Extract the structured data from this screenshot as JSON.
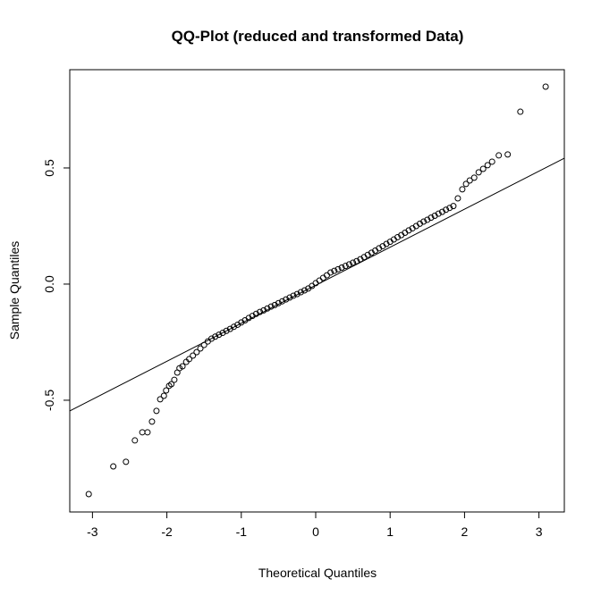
{
  "chart_data": {
    "type": "scatter",
    "title": "QQ-Plot (reduced and transformed Data)",
    "xlabel": "Theoretical Quantiles",
    "ylabel": "Sample Quantiles",
    "xlim": [
      -3.305,
      3.341
    ],
    "ylim": [
      -0.981,
      0.923
    ],
    "xticks": [
      -3,
      -2,
      -1,
      0,
      1,
      2,
      3
    ],
    "yticks": [
      -0.5,
      {
        "value": 0,
        "label": "0.0"
      },
      0.5
    ],
    "color": "#000000",
    "x": [
      -3.05,
      -2.72,
      -2.55,
      -2.43,
      -2.33,
      -2.26,
      -2.2,
      -2.14,
      -2.09,
      -2.04,
      -2.01,
      -1.97,
      -1.94,
      -1.9,
      -1.86,
      -1.83,
      -1.79,
      -1.74,
      -1.7,
      -1.65,
      -1.6,
      -1.55,
      -1.5,
      -1.45,
      -1.4,
      -1.35,
      -1.3,
      -1.25,
      -1.2,
      -1.15,
      -1.1,
      -1.05,
      -1.0,
      -0.95,
      -0.9,
      -0.85,
      -0.8,
      -0.75,
      -0.7,
      -0.65,
      -0.6,
      -0.55,
      -0.5,
      -0.45,
      -0.4,
      -0.35,
      -0.3,
      -0.25,
      -0.2,
      -0.15,
      -0.1,
      -0.05,
      0.0,
      0.05,
      0.1,
      0.15,
      0.2,
      0.25,
      0.3,
      0.35,
      0.4,
      0.45,
      0.5,
      0.55,
      0.6,
      0.65,
      0.7,
      0.75,
      0.8,
      0.85,
      0.9,
      0.95,
      1.0,
      1.05,
      1.1,
      1.15,
      1.2,
      1.25,
      1.3,
      1.35,
      1.4,
      1.45,
      1.5,
      1.55,
      1.6,
      1.65,
      1.7,
      1.75,
      1.8,
      1.85,
      1.91,
      1.97,
      2.02,
      2.07,
      2.13,
      2.19,
      2.25,
      2.31,
      2.37,
      2.46,
      2.58,
      2.75,
      3.09
    ],
    "y": [
      -0.904,
      -0.785,
      -0.765,
      -0.673,
      -0.638,
      -0.638,
      -0.592,
      -0.546,
      -0.496,
      -0.481,
      -0.458,
      -0.438,
      -0.431,
      -0.412,
      -0.381,
      -0.362,
      -0.354,
      -0.335,
      -0.323,
      -0.308,
      -0.293,
      -0.277,
      -0.262,
      -0.247,
      -0.235,
      -0.226,
      -0.218,
      -0.21,
      -0.201,
      -0.193,
      -0.184,
      -0.175,
      -0.165,
      -0.156,
      -0.146,
      -0.137,
      -0.128,
      -0.12,
      -0.113,
      -0.105,
      -0.097,
      -0.09,
      -0.082,
      -0.074,
      -0.066,
      -0.058,
      -0.05,
      -0.043,
      -0.035,
      -0.027,
      -0.019,
      -0.008,
      0.004,
      0.015,
      0.027,
      0.038,
      0.05,
      0.057,
      0.064,
      0.071,
      0.078,
      0.085,
      0.092,
      0.099,
      0.107,
      0.116,
      0.126,
      0.135,
      0.144,
      0.154,
      0.163,
      0.173,
      0.182,
      0.192,
      0.202,
      0.211,
      0.221,
      0.231,
      0.24,
      0.25,
      0.26,
      0.269,
      0.277,
      0.286,
      0.294,
      0.303,
      0.311,
      0.32,
      0.328,
      0.336,
      0.369,
      0.408,
      0.431,
      0.446,
      0.458,
      0.481,
      0.496,
      0.512,
      0.527,
      0.554,
      0.558,
      0.742,
      0.85
    ],
    "reference_line": {
      "x": [
        -3.305,
        3.341
      ],
      "y": [
        -0.546,
        0.542
      ]
    }
  }
}
